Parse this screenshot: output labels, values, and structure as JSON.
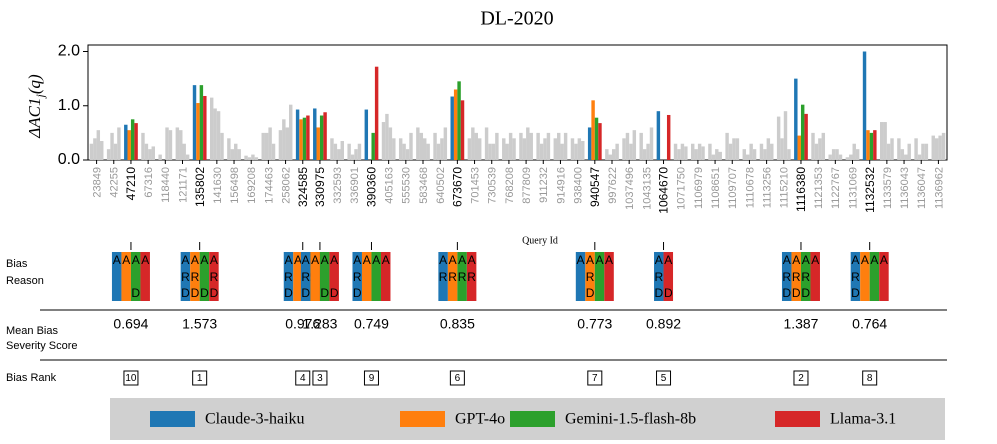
{
  "chart_data": {
    "type": "bar",
    "title": "DL-2020",
    "y_label": "ΔAC1",
    "y_label_sub": "j",
    "y_label_tail": "(q)",
    "x_label": "Query Id",
    "ylim": [
      0,
      2.12
    ],
    "yticks": [
      {
        "value": 0,
        "label": "0.0"
      },
      {
        "value": 1,
        "label": "1.0"
      },
      {
        "value": 2,
        "label": "2.0"
      }
    ],
    "muted_color": "#cccccc",
    "categories": [
      "23849",
      "42255",
      "47210",
      "67316",
      "118440",
      "121171",
      "135802",
      "141630",
      "156498",
      "169208",
      "174463",
      "258062",
      "324585",
      "330975",
      "332593",
      "336901",
      "390360",
      "405163",
      "555530",
      "583468",
      "640502",
      "673670",
      "701453",
      "730539",
      "768208",
      "877809",
      "911232",
      "914916",
      "938400",
      "940547",
      "997622",
      "1037496",
      "1043135",
      "1064670",
      "1071750",
      "1106979",
      "1108651",
      "1109707",
      "1110678",
      "1113256",
      "1115210",
      "1116380",
      "1121353",
      "1122767",
      "1131069",
      "1132532",
      "1133579",
      "1136043",
      "1136047",
      "1136962"
    ],
    "series": [
      {
        "name": "Claude-3-haiku",
        "color": "#1f77b4",
        "values": [
          0.3,
          0.2,
          0.65,
          0.5,
          0.1,
          0.6,
          1.38,
          1.15,
          0.4,
          0.08,
          0.5,
          0.55,
          0.93,
          0.95,
          0.4,
          0.3,
          0.93,
          0.7,
          0.4,
          0.6,
          0.5,
          1.17,
          0.4,
          0.6,
          0.4,
          0.5,
          0.5,
          0.4,
          0.4,
          0.6,
          0.2,
          0.4,
          0.5,
          0.9,
          0.3,
          0.3,
          0.3,
          0.5,
          0.2,
          0.3,
          0.8,
          1.5,
          0.5,
          0.1,
          0.05,
          2.0,
          0.7,
          0.4,
          0.4,
          0.45
        ]
      },
      {
        "name": "GPT-4o",
        "color": "#ff7f0e",
        "values": [
          0.4,
          0.5,
          0.55,
          0.3,
          0.0,
          0.55,
          1.05,
          0.95,
          0.2,
          0.05,
          0.5,
          0.75,
          0.75,
          0.6,
          0.3,
          0.1,
          0,
          0.85,
          0.3,
          0.5,
          0.3,
          1.3,
          0.6,
          0.3,
          0.3,
          0.4,
          0.3,
          0.5,
          0.3,
          1.1,
          0.1,
          0.5,
          0.2,
          0,
          0.2,
          0.2,
          0.1,
          0.3,
          0.1,
          0.2,
          0.4,
          0.45,
          0.3,
          0.2,
          0.1,
          0.55,
          0.7,
          0.2,
          0.1,
          0.4
        ]
      },
      {
        "name": "Gemini-1.5-flash-8b",
        "color": "#2ca02c",
        "values": [
          0.55,
          0.3,
          0.75,
          0.2,
          0.6,
          0.3,
          1.38,
          0.9,
          0.3,
          0.1,
          0.6,
          0.6,
          0.78,
          0.82,
          0.2,
          0.2,
          0.5,
          0.6,
          0.2,
          0.4,
          0.4,
          1.45,
          0.5,
          0.3,
          0.5,
          0.6,
          0.4,
          0.3,
          0.4,
          0.78,
          0.2,
          0.3,
          0.3,
          0,
          0.3,
          0.3,
          0.2,
          0.4,
          0.3,
          0.4,
          0.9,
          1.02,
          0.4,
          0.2,
          0.3,
          0.5,
          0.3,
          0.1,
          0.3,
          0.45
        ]
      },
      {
        "name": "Llama-3.1",
        "color": "#d62728",
        "values": [
          0.35,
          0.6,
          0.68,
          0.25,
          0.55,
          0.1,
          1.18,
          0.5,
          0.2,
          0.05,
          0.3,
          1.02,
          0.82,
          0.88,
          0.35,
          0.3,
          1.72,
          0.4,
          0.5,
          0.3,
          0.6,
          1.1,
          0.4,
          0.5,
          0.4,
          0.5,
          0.5,
          0.5,
          0.35,
          0.68,
          0.3,
          0.55,
          0.6,
          0.83,
          0.25,
          0.25,
          0.15,
          0.4,
          0.2,
          0.3,
          0.2,
          0.85,
          0.5,
          0.1,
          0.2,
          0.55,
          0.4,
          0.3,
          0.3,
          0.5
        ]
      }
    ],
    "bias": {
      "label_reason": [
        "Bias",
        "Reason"
      ],
      "label_score": [
        "Mean Bias",
        "Severity Score"
      ],
      "label_rank": "Bias Rank",
      "items": [
        {
          "query": "47210",
          "reasons": [
            [
              "A"
            ],
            [
              "A"
            ],
            [
              "A",
              "D"
            ],
            [
              "A"
            ]
          ],
          "score": 0.694,
          "rank": 10
        },
        {
          "query": "135802",
          "reasons": [
            [
              "A",
              "R",
              "D"
            ],
            [
              "A",
              "R",
              "D"
            ],
            [
              "A",
              "D"
            ],
            [
              "A",
              "R",
              "D"
            ]
          ],
          "score": 1.573,
          "rank": 1
        },
        {
          "query": "324585",
          "reasons": [
            [
              "A",
              "R",
              "D"
            ],
            [
              "A"
            ],
            [
              "A",
              "R"
            ],
            [
              "A"
            ]
          ],
          "score": 0.976,
          "rank": 4
        },
        {
          "query": "330975",
          "reasons": [
            [
              "A",
              "R",
              "D"
            ],
            [
              "A"
            ],
            [
              "A",
              "D"
            ],
            [
              "A",
              "D"
            ]
          ],
          "score": 1.283,
          "rank": 3
        },
        {
          "query": "390360",
          "reasons": [
            [
              "A",
              "R",
              "D"
            ],
            [
              "A"
            ],
            [
              "A"
            ],
            [
              "A"
            ]
          ],
          "score": 0.749,
          "rank": 9
        },
        {
          "query": "673670",
          "reasons": [
            [
              "A",
              "R"
            ],
            [
              "A",
              "R"
            ],
            [
              "A",
              "R"
            ],
            [
              "A",
              "R"
            ]
          ],
          "score": 0.835,
          "rank": 6
        },
        {
          "query": "940547",
          "reasons": [
            [
              "A"
            ],
            [
              "A",
              "R",
              "D"
            ],
            [
              "A"
            ],
            [
              "A"
            ]
          ],
          "score": 0.773,
          "rank": 7
        },
        {
          "query": "1064670",
          "reasons": [
            [
              "A",
              "R",
              "D"
            ],
            null,
            null,
            [
              "A",
              "D"
            ]
          ],
          "score": 0.892,
          "rank": 5
        },
        {
          "query": "1116380",
          "reasons": [
            [
              "A",
              "R",
              "D"
            ],
            [
              "A",
              "R",
              "D"
            ],
            [
              "A",
              "R",
              "D"
            ],
            [
              "A"
            ]
          ],
          "score": 1.387,
          "rank": 2
        },
        {
          "query": "1132532",
          "reasons": [
            [
              "A",
              "R",
              "D"
            ],
            [
              "A"
            ],
            [
              "A"
            ],
            [
              "A"
            ]
          ],
          "score": 0.764,
          "rank": 8
        }
      ]
    }
  }
}
